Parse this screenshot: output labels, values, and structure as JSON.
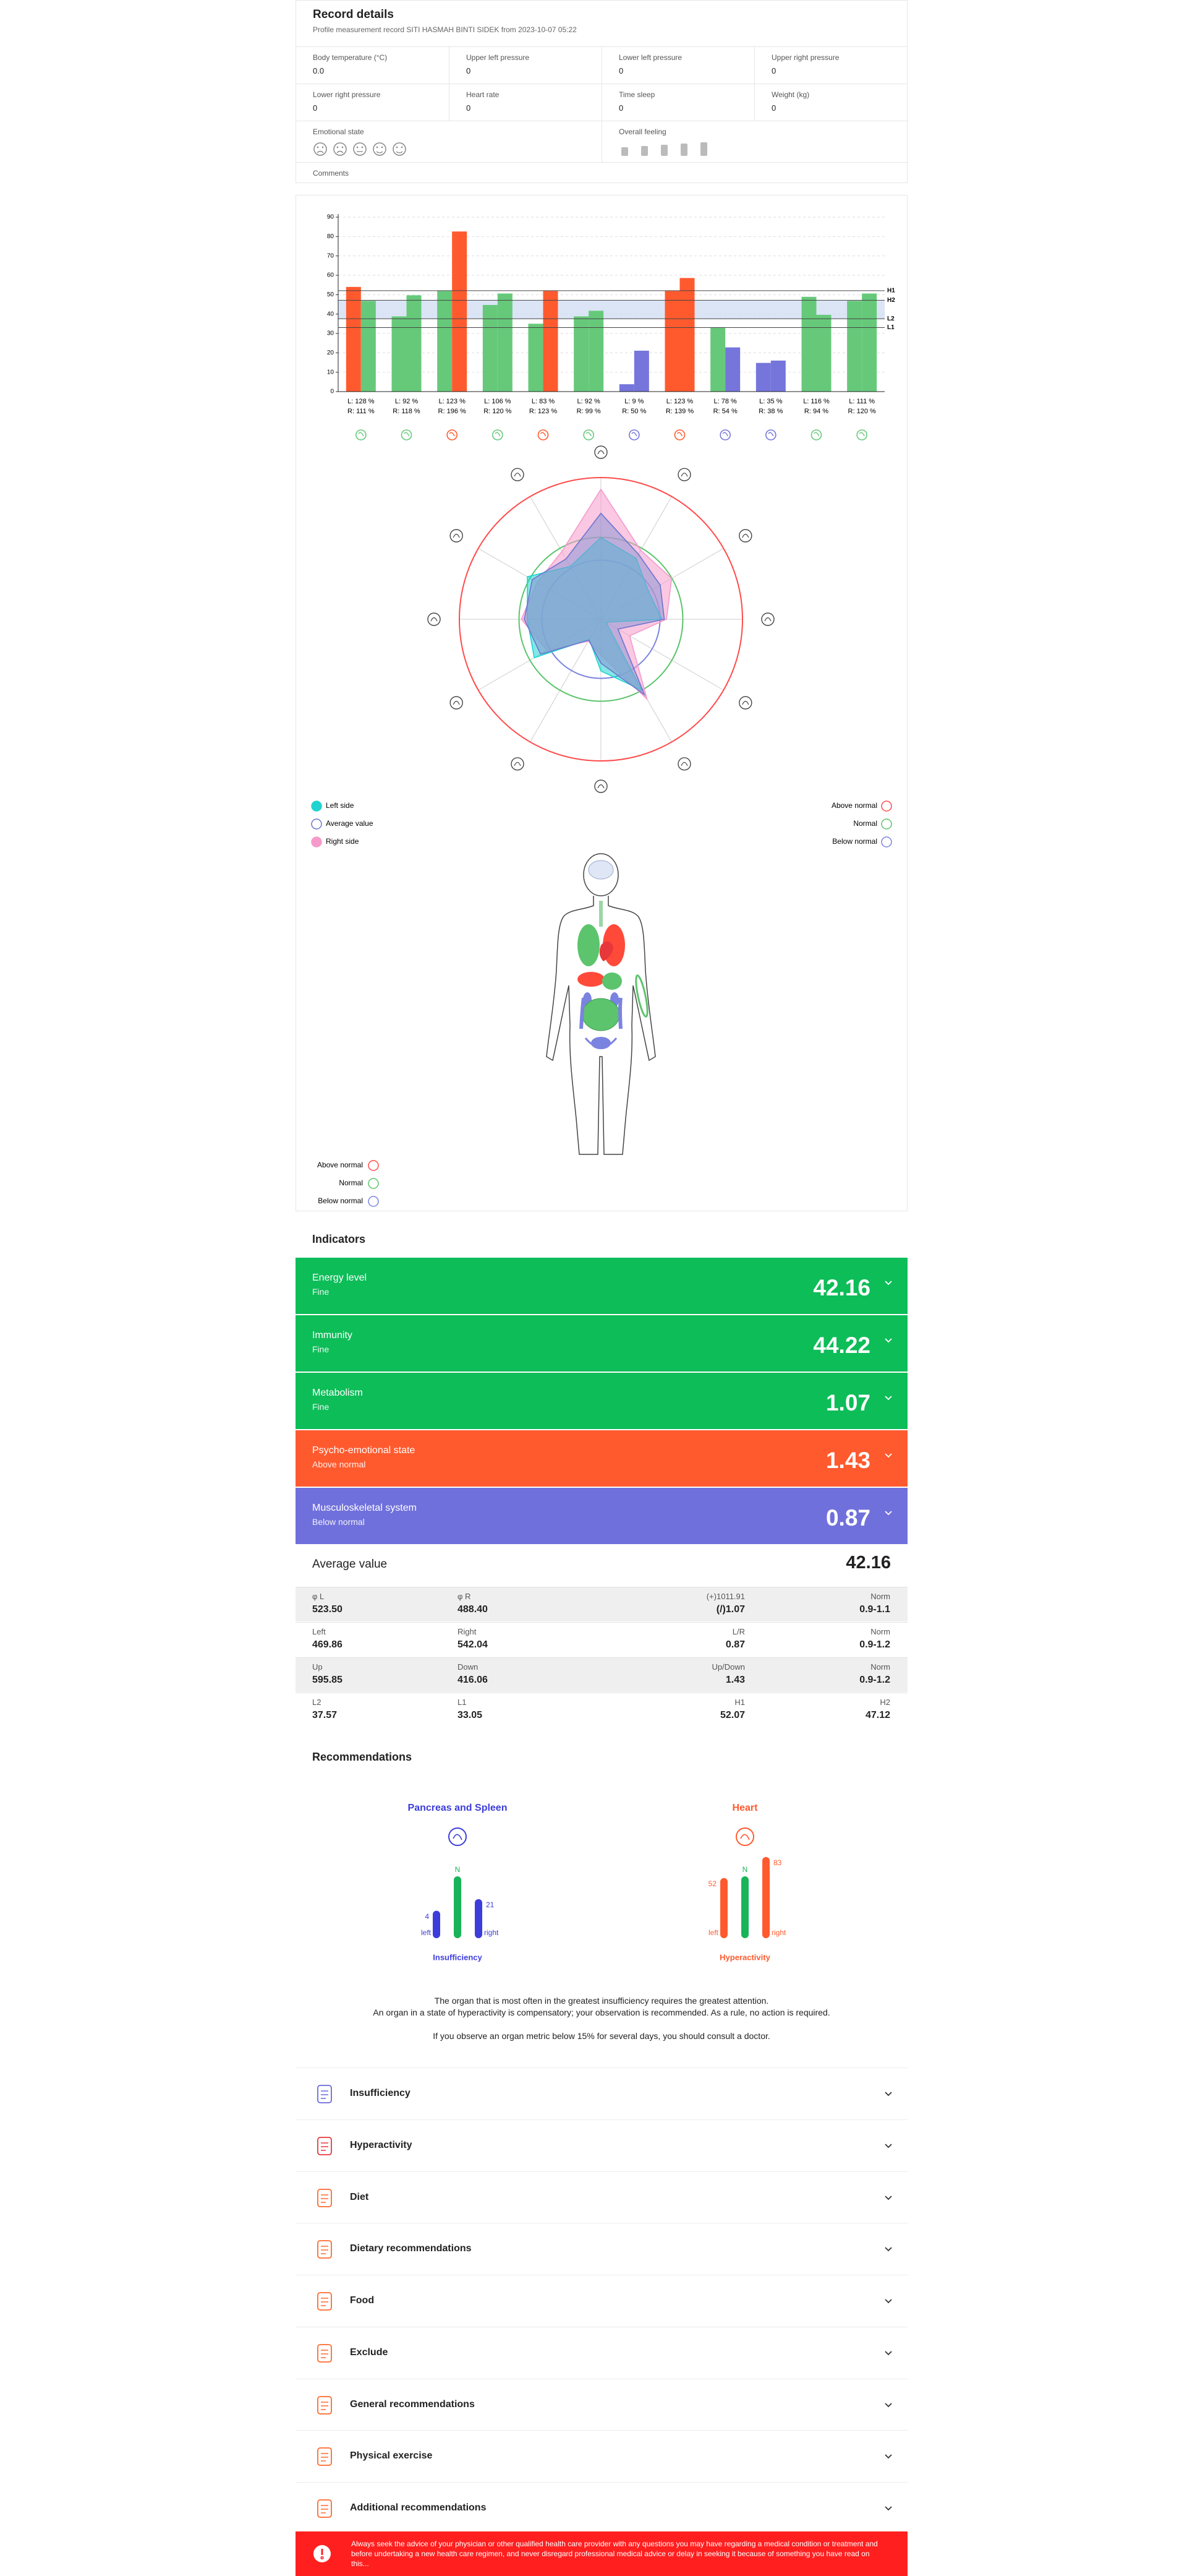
{
  "record": {
    "title": "Record details",
    "subtitle": "Profile measurement record SITI HASMAH BINTI SIDEK from 2023-10-07 05:22",
    "fields": [
      {
        "label": "Body temperature (°C)",
        "value": "0.0"
      },
      {
        "label": "Upper left pressure",
        "value": "0"
      },
      {
        "label": "Lower left pressure",
        "value": "0"
      },
      {
        "label": "Upper right pressure",
        "value": "0"
      },
      {
        "label": "Lower right pressure",
        "value": "0"
      },
      {
        "label": "Heart rate",
        "value": "0"
      },
      {
        "label": "Time sleep",
        "value": "0"
      },
      {
        "label": "Weight (kg)",
        "value": "0"
      }
    ],
    "emotional_state": "Emotional state",
    "overall_feeling": "Overall feeling",
    "comments": "Comments"
  },
  "chart_data": [
    {
      "type": "bar",
      "categories": [
        [
          "L: 128 %",
          "R: 111 %"
        ],
        [
          "L: 92 %",
          "R: 118 %"
        ],
        [
          "L: 123 %",
          "R: 196 %"
        ],
        [
          "L: 106 %",
          "R: 120 %"
        ],
        [
          "L: 83 %",
          "R: 123 %"
        ],
        [
          "L: 92 %",
          "R: 99 %"
        ],
        [
          "L: 9 %",
          "R: 50 %"
        ],
        [
          "L: 123 %",
          "R: 139 %"
        ],
        [
          "L: 78 %",
          "R: 54 %"
        ],
        [
          "L: 35 %",
          "R: 38 %"
        ],
        [
          "L: 116 %",
          "R: 94 %"
        ],
        [
          "L: 111 %",
          "R: 120 %"
        ]
      ],
      "series": [
        {
          "values": [
            54.0,
            38.8,
            51.9,
            44.7,
            35.0,
            38.8,
            3.8,
            51.9,
            32.9,
            14.8,
            48.9,
            46.8
          ],
          "colors": [
            "#ff5a2e",
            "#66c97a",
            "#66c97a",
            "#66c97a",
            "#66c97a",
            "#66c97a",
            "#7575dc",
            "#ff5a2e",
            "#66c97a",
            "#7575dc",
            "#66c97a",
            "#66c97a"
          ]
        },
        {
          "values": [
            46.8,
            49.7,
            82.6,
            50.6,
            51.9,
            41.7,
            21.1,
            58.6,
            22.8,
            16.0,
            39.6,
            50.6
          ],
          "colors": [
            "#66c97a",
            "#66c97a",
            "#ff5a2e",
            "#66c97a",
            "#ff5a2e",
            "#66c97a",
            "#7575dc",
            "#ff5a2e",
            "#7575dc",
            "#7575dc",
            "#66c97a",
            "#66c97a"
          ]
        }
      ],
      "reference_lines": [
        {
          "label": "H1",
          "value": 52.07
        },
        {
          "label": "H2",
          "value": 47.12
        },
        {
          "label": "L2",
          "value": 37.57
        },
        {
          "label": "L1",
          "value": 33.05
        }
      ],
      "ylim": [
        0,
        90
      ],
      "yticks": [
        0,
        10,
        20,
        30,
        40,
        50,
        60,
        70,
        80,
        90
      ],
      "grid": true
    },
    {
      "type": "radar",
      "rlim": [
        0,
        90
      ],
      "series": [
        {
          "name": "Left side",
          "color": "#1fd3cf",
          "fill": true,
          "values": [
            54.0,
            38.8,
            51.9,
            44.7,
            35.0,
            38.8,
            3.8,
            51.9,
            32.9,
            14.8,
            48.9,
            46.8
          ]
        },
        {
          "name": "Average value",
          "color": "#6c74cf",
          "fill": false,
          "values": [
            50.4,
            44.3,
            67.3,
            47.7,
            43.5,
            40.3,
            12.5,
            55.3,
            27.9,
            15.4,
            44.3,
            48.7
          ]
        },
        {
          "name": "Right side",
          "color": "#f59acb",
          "fill": true,
          "values": [
            46.8,
            49.7,
            82.6,
            50.6,
            51.9,
            41.7,
            21.1,
            58.6,
            22.8,
            16.0,
            39.6,
            50.6
          ]
        }
      ],
      "rings": [
        {
          "label": "Above normal",
          "color": "#ff4a4a"
        },
        {
          "label": "Normal",
          "color": "#5cc46c"
        },
        {
          "label": "Below normal",
          "color": "#7b83e0"
        }
      ]
    }
  ],
  "body_legend": [
    {
      "label": "Above normal",
      "color": "#ff4a4a"
    },
    {
      "label": "Normal",
      "color": "#5cc46c"
    },
    {
      "label": "Below normal",
      "color": "#7b83e0"
    }
  ],
  "indicators": {
    "title": "Indicators",
    "items": [
      {
        "name": "Energy level",
        "status": "Fine",
        "value": "42.16",
        "color": "#0dbd58"
      },
      {
        "name": "Immunity",
        "status": "Fine",
        "value": "44.22",
        "color": "#0dbd58"
      },
      {
        "name": "Metabolism",
        "status": "Fine",
        "value": "1.07",
        "color": "#0dbd58"
      },
      {
        "name": "Psycho-emotional state",
        "status": "Above normal",
        "value": "1.43",
        "color": "#ff5a2e"
      },
      {
        "name": "Musculoskeletal system",
        "status": "Below normal",
        "value": "0.87",
        "color": "#7070dc"
      }
    ],
    "average": {
      "label": "Average value",
      "value": "42.16"
    },
    "table": [
      [
        [
          "φ L",
          "523.50"
        ],
        [
          "φ R",
          "488.40"
        ],
        [
          "(+)1011.91",
          "(/)1.07"
        ],
        [
          "Norm",
          "0.9-1.1"
        ]
      ],
      [
        [
          "Left",
          "469.86"
        ],
        [
          "Right",
          "542.04"
        ],
        [
          "L/R",
          "0.87"
        ],
        [
          "Norm",
          "0.9-1.2"
        ]
      ],
      [
        [
          "Up",
          "595.85"
        ],
        [
          "Down",
          "416.06"
        ],
        [
          "Up/Down",
          "1.43"
        ],
        [
          "Norm",
          "0.9-1.2"
        ]
      ],
      [
        [
          "L2",
          "37.57"
        ],
        [
          "L1",
          "33.05"
        ],
        [
          "H1",
          "52.07"
        ],
        [
          "H2",
          "47.12"
        ]
      ]
    ]
  },
  "recommendations": {
    "title": "Recommendations",
    "organs": [
      {
        "name": "Pancreas and Spleen",
        "color": "#3d3ddb",
        "left": 4,
        "right": 21,
        "left_label": "left",
        "normal_label": "N",
        "right_label": "right",
        "state": "Insufficiency"
      },
      {
        "name": "Heart",
        "color": "#ff5a2e",
        "left": 52,
        "right": 83,
        "left_label": "left",
        "normal_label": "N",
        "right_label": "right",
        "state": "Hyperactivity"
      }
    ],
    "paragraphs": [
      "The organ that is most often in the greatest insufficiency requires the greatest attention.",
      "An organ in a state of hyperactivity is compensatory; your observation is recommended. As a rule, no action is required.",
      "If you observe an organ metric below 15% for several days, you should consult a doctor."
    ],
    "sections": [
      "Insufficiency",
      "Hyperactivity",
      "Diet",
      "Dietary recommendations",
      "Food",
      "Exclude",
      "General recommendations",
      "Physical exercise",
      "Additional recommendations"
    ]
  },
  "disclaimer": "Always seek the advice of your physician or other qualified health care provider with any questions you may have regarding a medical condition or treatment and before undertaking a new health care regimen, and never disregard professional medical advice or delay in seeking it because of something you have read on this..."
}
